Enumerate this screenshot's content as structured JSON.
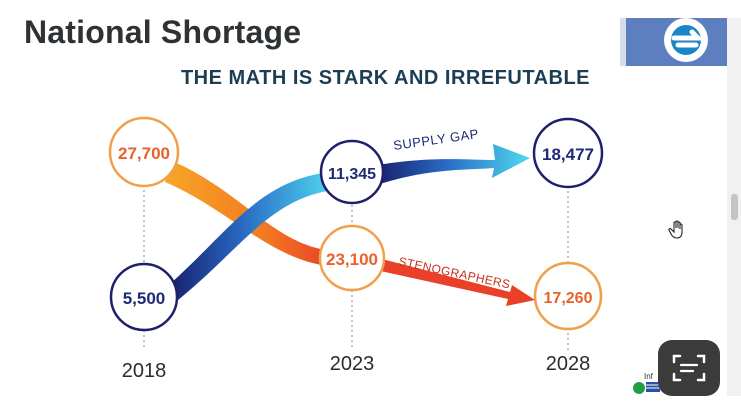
{
  "page": {
    "title": "National Shortage",
    "subtitle": "THE MATH IS STARK AND IRREFUTABLE"
  },
  "infographic": {
    "years": [
      "2018",
      "2023",
      "2028"
    ],
    "supply_gap": {
      "label": "SUPPLY GAP",
      "values": [
        "5,500",
        "11,345",
        "18,477"
      ]
    },
    "stenographers": {
      "label": "STENOGRAPHERS",
      "values": [
        "27,700",
        "23,100",
        "17,260"
      ]
    }
  },
  "overlay": {
    "partial_text": "Inf"
  },
  "colors": {
    "orange_circle": "#f0a04a",
    "navy_circle": "#1f1f6e",
    "orange_value": "#e8622a",
    "navy_value": "#1e2a78",
    "subtitle": "#1d3d52",
    "logo": "#5d7fc0"
  },
  "icons": {
    "logo": "circular-arrow-logo",
    "cursor": "hand-cursor-icon",
    "lens": "scan-text-icon"
  }
}
